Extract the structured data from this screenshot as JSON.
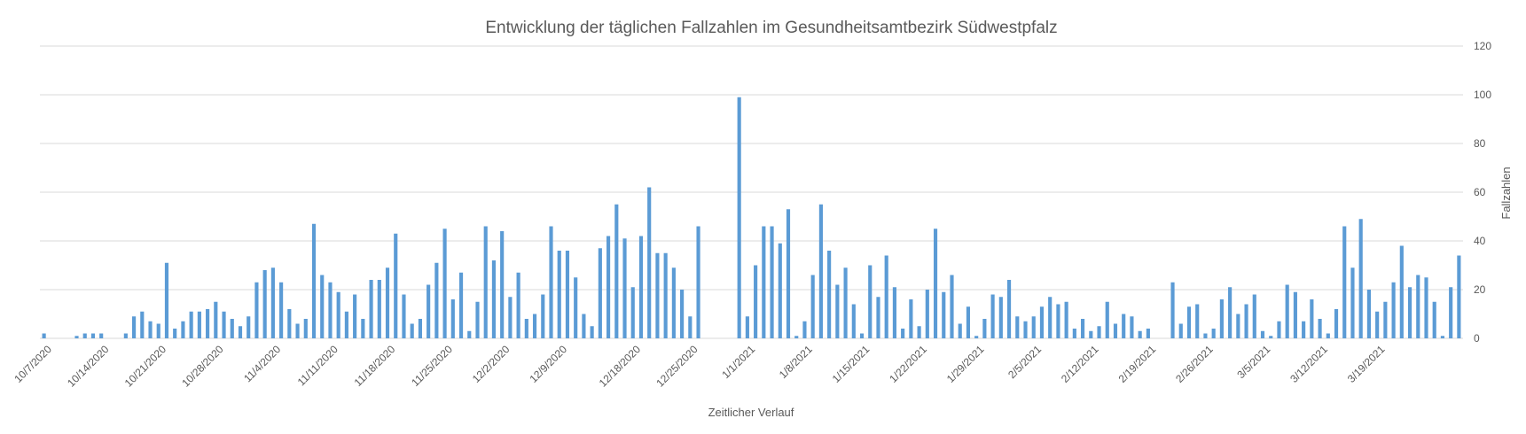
{
  "chart_data": {
    "type": "bar",
    "title": "Entwicklung der täglichen Fallzahlen im Gesundheitsamtbezirk Südwestpfalz",
    "xlabel": "Zeitlicher Verlauf",
    "ylabel": "Fallzahlen",
    "ylim": [
      0,
      120
    ],
    "yticks": [
      0,
      20,
      40,
      60,
      80,
      100,
      120
    ],
    "y_axis_side": "right",
    "grid": true,
    "color": "#5b9bd5",
    "start_date": "2020-10-06",
    "end_date": "2021-03-25",
    "x_tick_labels": [
      "10/7/2020",
      "10/14/2020",
      "10/21/2020",
      "10/28/2020",
      "11/4/2020",
      "11/11/2020",
      "11/18/2020",
      "11/25/2020",
      "12/2/2020",
      "12/9/2020",
      "12/18/2020",
      "12/25/2020",
      "1/1/2021",
      "1/8/2021",
      "1/15/2021",
      "1/22/2021",
      "1/29/2021",
      "2/5/2021",
      "2/12/2021",
      "2/19/2021",
      "2/26/2021",
      "3/5/2021",
      "3/12/2021",
      "3/19/2021"
    ],
    "values": [
      2,
      0,
      0,
      0,
      1,
      2,
      2,
      2,
      0,
      0,
      2,
      9,
      11,
      7,
      6,
      31,
      4,
      7,
      11,
      11,
      12,
      15,
      11,
      8,
      5,
      9,
      23,
      28,
      29,
      23,
      12,
      6,
      8,
      47,
      26,
      23,
      19,
      11,
      18,
      8,
      24,
      24,
      29,
      43,
      18,
      6,
      8,
      22,
      31,
      45,
      16,
      27,
      3,
      15,
      46,
      32,
      44,
      17,
      27,
      8,
      10,
      18,
      46,
      36,
      36,
      25,
      10,
      5,
      37,
      42,
      55,
      41,
      21,
      42,
      62,
      35,
      35,
      29,
      20,
      9,
      46,
      0,
      0,
      0,
      0,
      99,
      9,
      30,
      46,
      46,
      39,
      53,
      1,
      7,
      26,
      55,
      36,
      22,
      29,
      14,
      2,
      30,
      17,
      34,
      21,
      4,
      16,
      5,
      20,
      45,
      19,
      26,
      6,
      13,
      1,
      8,
      18,
      17,
      24,
      9,
      7,
      9,
      13,
      17,
      14,
      15,
      4,
      8,
      3,
      5,
      15,
      6,
      10,
      9,
      3,
      4,
      0,
      0,
      23,
      6,
      13,
      14,
      2,
      4,
      16,
      21,
      10,
      14,
      18,
      3,
      1,
      7,
      22,
      19,
      7,
      16,
      8,
      2,
      12,
      46,
      29,
      49,
      20,
      11,
      15,
      23,
      38,
      21,
      26,
      25,
      15,
      1,
      21,
      34
    ]
  }
}
